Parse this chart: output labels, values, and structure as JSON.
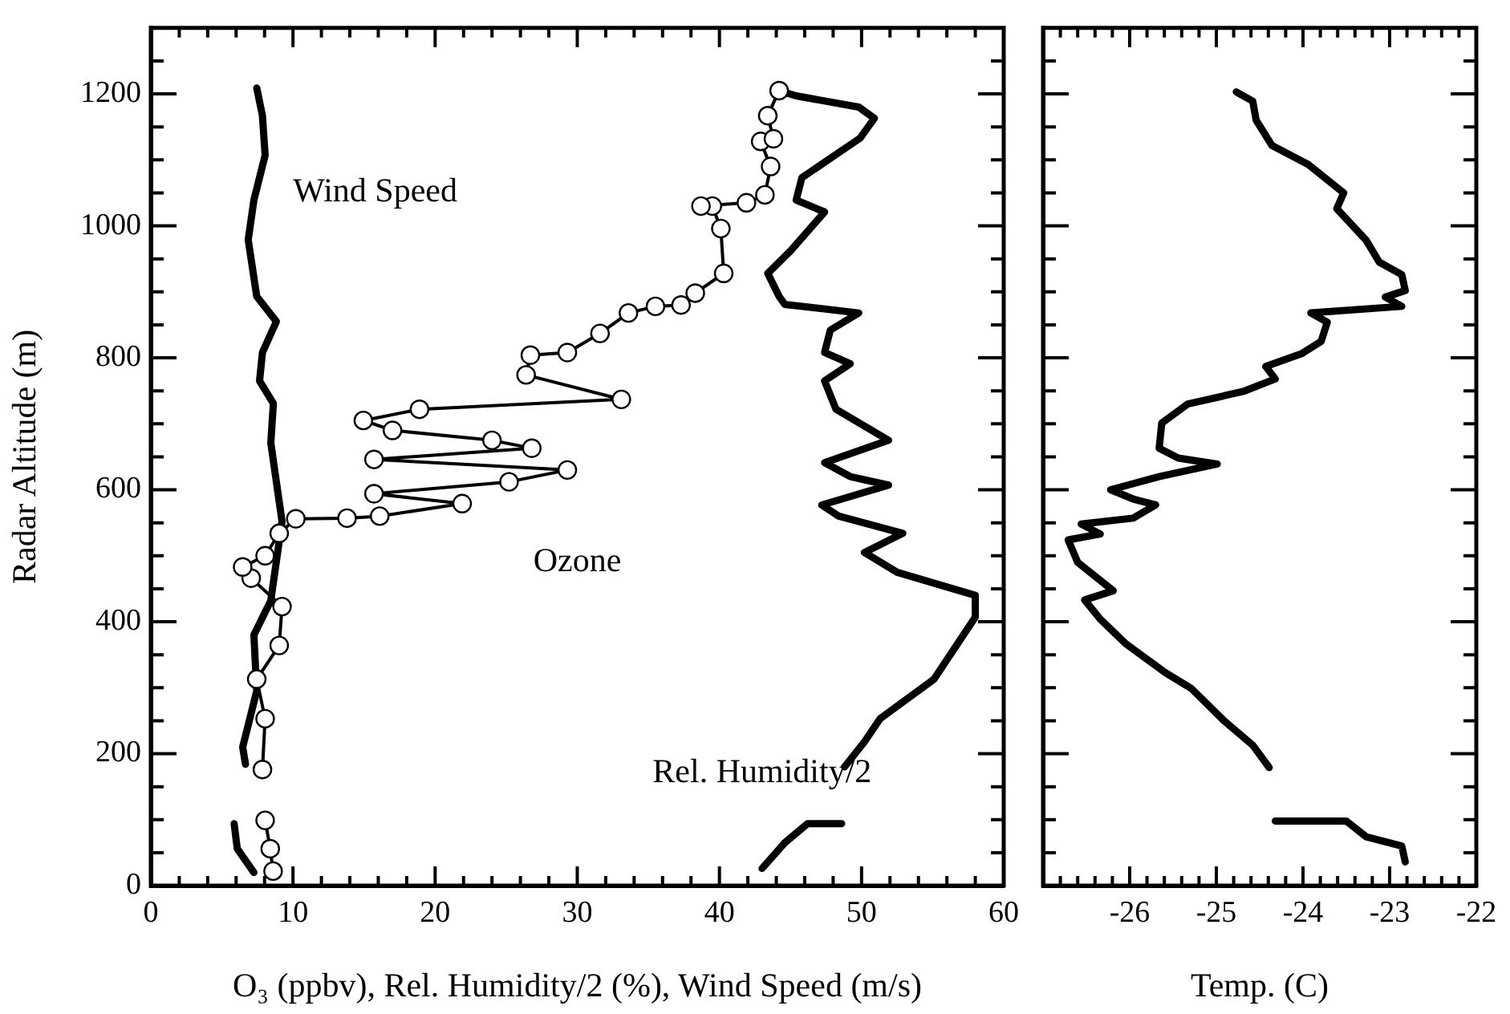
{
  "chart_data": [
    {
      "type": "line",
      "xlabel": "O₃ (ppbv), Rel. Humidity/2 (%), Wind Speed (m/s)",
      "ylabel": "Radar Altitude (m)",
      "xlim": [
        0,
        60
      ],
      "ylim": [
        0,
        1300
      ],
      "grid": false,
      "legend": false,
      "xticks": [
        0,
        {
          "value": 2,
          "label": null
        },
        {
          "value": 4,
          "label": null
        },
        {
          "value": 6,
          "label": null
        },
        {
          "value": 8,
          "label": null
        },
        10,
        {
          "value": 12,
          "label": null
        },
        {
          "value": 14,
          "label": null
        },
        {
          "value": 16,
          "label": null
        },
        {
          "value": 18,
          "label": null
        },
        20,
        {
          "value": 22,
          "label": null
        },
        {
          "value": 24,
          "label": null
        },
        {
          "value": 26,
          "label": null
        },
        {
          "value": 28,
          "label": null
        },
        30,
        {
          "value": 32,
          "label": null
        },
        {
          "value": 34,
          "label": null
        },
        {
          "value": 36,
          "label": null
        },
        {
          "value": 38,
          "label": null
        },
        40,
        {
          "value": 42,
          "label": null
        },
        {
          "value": 44,
          "label": null
        },
        {
          "value": 46,
          "label": null
        },
        {
          "value": 48,
          "label": null
        },
        50,
        {
          "value": 52,
          "label": null
        },
        {
          "value": 54,
          "label": null
        },
        {
          "value": 56,
          "label": null
        },
        {
          "value": 58,
          "label": null
        },
        60
      ],
      "yticks": [
        0,
        {
          "value": 50,
          "label": null
        },
        {
          "value": 100,
          "label": null
        },
        {
          "value": 150,
          "label": null
        },
        200,
        {
          "value": 250,
          "label": null
        },
        {
          "value": 300,
          "label": null
        },
        {
          "value": 350,
          "label": null
        },
        400,
        {
          "value": 450,
          "label": null
        },
        {
          "value": 500,
          "label": null
        },
        {
          "value": 550,
          "label": null
        },
        600,
        {
          "value": 650,
          "label": null
        },
        {
          "value": 700,
          "label": null
        },
        {
          "value": 750,
          "label": null
        },
        800,
        {
          "value": 850,
          "label": null
        },
        {
          "value": 900,
          "label": null
        },
        {
          "value": 950,
          "label": null
        },
        1000,
        {
          "value": 1050,
          "label": null
        },
        {
          "value": 1100,
          "label": null
        },
        {
          "value": 1150,
          "label": null
        },
        1200,
        {
          "value": 1250,
          "label": null
        }
      ],
      "series": [
        {
          "name": "Wind Speed",
          "type": "line",
          "color": "#000000",
          "marker": "none",
          "x": [
            7.45,
            7.85,
            8.04,
            7.25,
            6.85,
            7.45,
            8.83,
            7.85,
            7.65,
            8.62,
            8.44,
            8.83,
            9.23,
            8.44,
            7.25,
            7.45,
            6.46,
            6.66,
            null,
            5.86,
            6.08,
            7.25
          ],
          "values": [
            1209,
            1167,
            1107,
            1039,
            979,
            893,
            855,
            808,
            765,
            731,
            671,
            612,
            552,
            432,
            380,
            295,
            210,
            184,
            null,
            94,
            56,
            20
          ]
        },
        {
          "name": "Ozone",
          "type": "line",
          "color": "#000000",
          "marker": "circle",
          "x": [
            8.6,
            8.4,
            8.04,
            null,
            7.85,
            8.04,
            7.45,
            9.03,
            9.23,
            7.06,
            6.46,
            8.04,
            9.03,
            10.2,
            13.8,
            16.1,
            21.9,
            15.7,
            25.2,
            29.3,
            15.7,
            26.8,
            24.0,
            17.0,
            14.95,
            18.9,
            33.1,
            26.4,
            26.7,
            29.3,
            31.6,
            33.6,
            35.5,
            37.3,
            38.3,
            40.3,
            40.1,
            39.5,
            38.7,
            41.9,
            43.2,
            43.6,
            42.9,
            43.8,
            43.4,
            44.2
          ],
          "values": [
            22,
            56,
            99,
            null,
            176,
            253,
            313,
            364,
            423,
            466,
            483,
            500,
            534,
            556,
            557,
            560,
            579,
            594,
            612,
            630,
            646,
            663,
            675,
            690,
            705,
            722,
            737,
            774,
            804,
            808,
            837,
            868,
            878,
            880,
            898,
            928,
            996,
            1030,
            1030,
            1035,
            1047,
            1090,
            1128,
            1132,
            1167,
            1205
          ]
        },
        {
          "name": "Rel. Humidity/2",
          "type": "line",
          "color": "#000000",
          "marker": "none",
          "x": [
            44.2,
            45.4,
            49.8,
            50.9,
            49.9,
            45.8,
            45.4,
            47.4,
            45.0,
            43.4,
            44.2,
            44.6,
            49.8,
            47.8,
            47.4,
            49.2,
            47.4,
            48.2,
            51.9,
            47.4,
            49.2,
            51.9,
            47.2,
            48.4,
            52.9,
            50.2,
            52.5,
            58.0,
            58.0,
            55.1,
            51.3,
            50.2,
            48.8,
            null,
            48.6,
            46.2,
            44.6,
            43.0
          ],
          "values": [
            1205,
            1197,
            1180,
            1163,
            1133,
            1073,
            1039,
            1021,
            962,
            928,
            893,
            881,
            868,
            842,
            808,
            791,
            765,
            722,
            675,
            641,
            620,
            607,
            577,
            560,
            534,
            505,
            475,
            440,
            407,
            313,
            253,
            218,
            180,
            null,
            94,
            94,
            65,
            26
          ]
        }
      ]
    },
    {
      "type": "line",
      "xlabel": "Temp. (C)",
      "xlim": [
        -27,
        -22
      ],
      "ylim": [
        0,
        1300
      ],
      "grid": false,
      "legend": false,
      "tick_labels": "x",
      "xticks": [
        {
          "value": -27,
          "label": null
        },
        {
          "value": -26.8,
          "label": null
        },
        {
          "value": -26.6,
          "label": null
        },
        {
          "value": -26.4,
          "label": null
        },
        {
          "value": -26.2,
          "label": null
        },
        -26,
        {
          "value": -25.8,
          "label": null
        },
        {
          "value": -25.6,
          "label": null
        },
        {
          "value": -25.4,
          "label": null
        },
        {
          "value": -25.2,
          "label": null
        },
        -25,
        {
          "value": -24.8,
          "label": null
        },
        {
          "value": -24.6,
          "label": null
        },
        {
          "value": -24.4,
          "label": null
        },
        {
          "value": -24.2,
          "label": null
        },
        -24,
        {
          "value": -23.8,
          "label": null
        },
        {
          "value": -23.6,
          "label": null
        },
        {
          "value": -23.4,
          "label": null
        },
        {
          "value": -23.2,
          "label": null
        },
        -23,
        {
          "value": -22.8,
          "label": null
        },
        {
          "value": -22.6,
          "label": null
        },
        {
          "value": -22.4,
          "label": null
        },
        {
          "value": -22.2,
          "label": null
        },
        -22
      ],
      "yticks": [
        {
          "value": 0,
          "label": null
        },
        {
          "value": 50,
          "label": null
        },
        {
          "value": 100,
          "label": null
        },
        {
          "value": 150,
          "label": null
        },
        {
          "value": 200,
          "label": null
        },
        {
          "value": 250,
          "label": null
        },
        {
          "value": 300,
          "label": null
        },
        {
          "value": 350,
          "label": null
        },
        {
          "value": 400,
          "label": null
        },
        {
          "value": 450,
          "label": null
        },
        {
          "value": 500,
          "label": null
        },
        {
          "value": 550,
          "label": null
        },
        {
          "value": 600,
          "label": null
        },
        {
          "value": 650,
          "label": null
        },
        {
          "value": 700,
          "label": null
        },
        {
          "value": 750,
          "label": null
        },
        {
          "value": 800,
          "label": null
        },
        {
          "value": 850,
          "label": null
        },
        {
          "value": 900,
          "label": null
        },
        {
          "value": 950,
          "label": null
        },
        {
          "value": 1000,
          "label": null
        },
        {
          "value": 1050,
          "label": null
        },
        {
          "value": 1100,
          "label": null
        },
        {
          "value": 1150,
          "label": null
        },
        {
          "value": 1200,
          "label": null
        },
        {
          "value": 1250,
          "label": null
        }
      ],
      "series": [
        {
          "type": "line",
          "color": "#000000",
          "marker": "none",
          "x": [
            -24.77,
            -24.58,
            -24.54,
            -24.36,
            -23.94,
            -23.53,
            -23.61,
            -23.27,
            -23.12,
            -22.86,
            -22.82,
            -23.05,
            -22.86,
            -23.91,
            -23.72,
            -23.79,
            -24.02,
            -24.43,
            -24.32,
            -24.69,
            -25.33,
            -25.63,
            -25.66,
            -25.44,
            -24.99,
            -25.66,
            -26.22,
            -25.96,
            -25.7,
            -25.96,
            -26.56,
            -26.34,
            -26.71,
            -26.6,
            -26.19,
            -26.52,
            -26.34,
            -26.04,
            -25.59,
            -25.29,
            -24.92,
            -24.58,
            -24.39,
            null,
            -24.32,
            -23.5,
            -23.27,
            -22.86,
            -22.82
          ],
          "values": [
            1203,
            1189,
            1160,
            1122,
            1093,
            1050,
            1026,
            978,
            945,
            926,
            902,
            892,
            878,
            868,
            854,
            825,
            806,
            787,
            768,
            749,
            730,
            701,
            663,
            648,
            639,
            620,
            600,
            586,
            577,
            557,
            548,
            533,
            524,
            490,
            447,
            433,
            404,
            366,
            323,
            299,
            251,
            213,
            179,
            null,
            98,
            98,
            74,
            60,
            36
          ]
        }
      ]
    }
  ]
}
